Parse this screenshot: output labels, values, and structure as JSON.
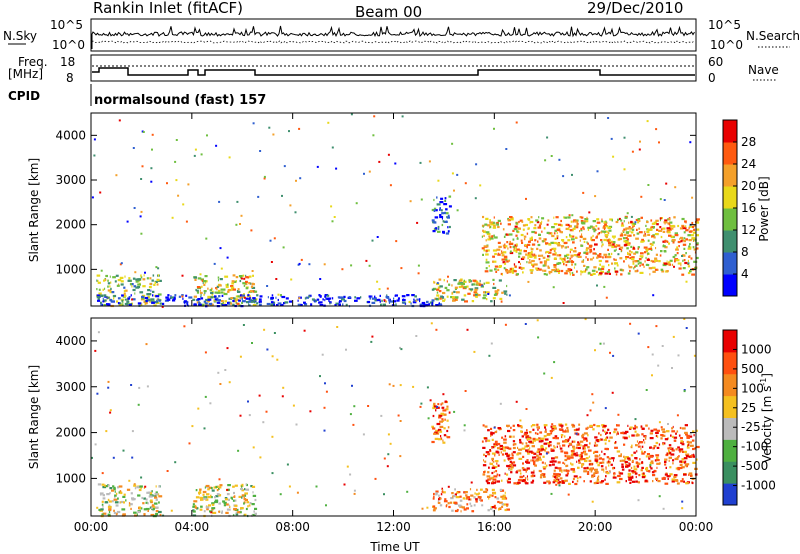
{
  "header": {
    "title": "Rankin Inlet (fitACF)",
    "beam": "Beam 00",
    "date": "29/Dec/2010"
  },
  "status_panels": {
    "nsky_label": "N.Sky",
    "nsky_ticks": [
      "10^5",
      "10^0"
    ],
    "nsearch_label": "N.Search",
    "nsearch_ticks": [
      "10^5",
      "10^0"
    ],
    "freq_label_1": "Freq.",
    "freq_label_2": "[MHz]",
    "freq_ticks": [
      "18",
      "8"
    ],
    "nave_label": "Nave",
    "nave_ticks": [
      "60",
      "0"
    ],
    "cpid_label": "CPID",
    "cpid_text": "normalsound (fast) 157"
  },
  "chart_data": [
    {
      "type": "heatmap",
      "title": "",
      "quantity": "Power",
      "xlabel": "",
      "ylabel": "Slant Range [km]",
      "xlim": [
        0,
        24
      ],
      "ylim": [
        180,
        4500
      ],
      "ytick_labels": [
        "1000",
        "2000",
        "3000",
        "4000"
      ],
      "colorbar": {
        "label": "Power [dB]",
        "range": [
          0,
          32
        ],
        "tick_labels": [
          "4",
          "8",
          "12",
          "16",
          "20",
          "24",
          "28"
        ],
        "colors": [
          "#0000ff",
          "#2f5fd0",
          "#3f8f6f",
          "#6fbf3f",
          "#e8d81a",
          "#f4a02a",
          "#ff5a10",
          "#e80000"
        ]
      },
      "regions": [
        {
          "x": [
            0.2,
            2.7
          ],
          "y": [
            200,
            900
          ],
          "level": 0.45
        },
        {
          "x": [
            4.0,
            6.5
          ],
          "y": [
            200,
            900
          ],
          "level": 0.55
        },
        {
          "x": [
            13.5,
            16.5
          ],
          "y": [
            300,
            800
          ],
          "level": 0.55
        },
        {
          "x": [
            15.5,
            24.0
          ],
          "y": [
            900,
            2200
          ],
          "level": 0.65
        },
        {
          "x": [
            13.5,
            14.2
          ],
          "y": [
            1800,
            2700
          ],
          "level": 0.2
        },
        {
          "x": [
            0.2,
            14.0
          ],
          "y": [
            200,
            450
          ],
          "level": 0.1
        }
      ]
    },
    {
      "type": "heatmap",
      "title": "",
      "quantity": "Velocity",
      "xlabel": "Time UT",
      "ylabel": "Slant Range [km]",
      "xlim": [
        0,
        24
      ],
      "ylim": [
        180,
        4500
      ],
      "xtick_labels": [
        "00:00",
        "04:00",
        "08:00",
        "12:00",
        "16:00",
        "20:00",
        "00:00"
      ],
      "ytick_labels": [
        "1000",
        "2000",
        "3000",
        "4000"
      ],
      "colorbar": {
        "label": "Velocity [m s^-1]",
        "range": [
          -1200,
          1200
        ],
        "tick_labels": [
          "1000",
          "500",
          "100",
          "25",
          "-25",
          "-100",
          "-500",
          "-1000"
        ],
        "colors": [
          "#2040d0",
          "#3a8f60",
          "#4fb040",
          "#bbbbbb",
          "#f4c020",
          "#f48a20",
          "#ff5010",
          "#e80000"
        ]
      },
      "regions": [
        {
          "x": [
            0.2,
            2.7
          ],
          "y": [
            200,
            900
          ],
          "level": 0.45
        },
        {
          "x": [
            4.0,
            6.5
          ],
          "y": [
            200,
            900
          ],
          "level": 0.45
        },
        {
          "x": [
            13.5,
            16.5
          ],
          "y": [
            300,
            800
          ],
          "level": 0.65
        },
        {
          "x": [
            15.5,
            24.0
          ],
          "y": [
            900,
            2200
          ],
          "level": 0.8
        },
        {
          "x": [
            13.5,
            14.2
          ],
          "y": [
            1800,
            2700
          ],
          "level": 0.75
        }
      ]
    }
  ]
}
